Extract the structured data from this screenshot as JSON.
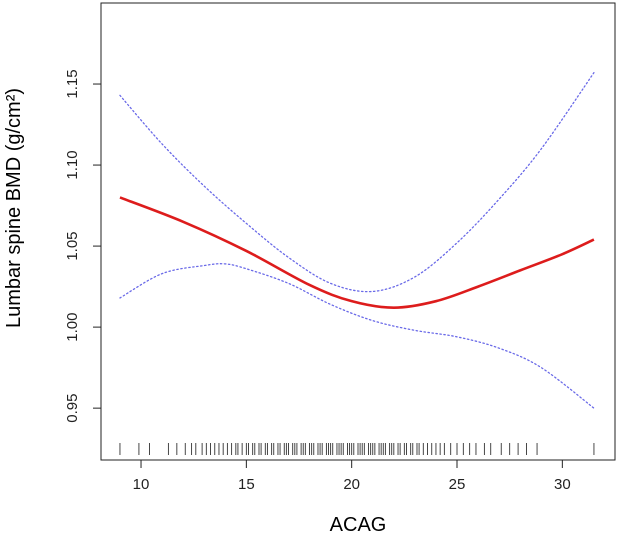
{
  "chart_data": {
    "type": "line",
    "title": "",
    "xlabel": "ACAG",
    "ylabel": "Lumbar spine BMD (g/cm²)",
    "xlim": [
      8.1,
      32.5
    ],
    "ylim": [
      0.918,
      1.2
    ],
    "x_ticks": [
      10,
      15,
      20,
      25,
      30
    ],
    "x_tick_labels": [
      "10",
      "15",
      "20",
      "25",
      "30"
    ],
    "y_ticks": [
      0.95,
      1.0,
      1.05,
      1.1,
      1.15
    ],
    "y_tick_labels": [
      "0.95",
      "1.00",
      "1.05",
      "1.10",
      "1.15"
    ],
    "series": [
      {
        "name": "fit",
        "style": "solid",
        "color": "#dd1c1c",
        "x": [
          9.0,
          12.0,
          15.0,
          18.0,
          20.0,
          22.0,
          24.0,
          26.0,
          28.0,
          30.0,
          31.5
        ],
        "values": [
          1.08,
          1.065,
          1.047,
          1.026,
          1.016,
          1.012,
          1.016,
          1.025,
          1.035,
          1.045,
          1.054
        ]
      },
      {
        "name": "upper 95% CI",
        "style": "dotted",
        "color": "#6a6ae8",
        "x": [
          9.0,
          11.0,
          13.0,
          15.0,
          17.0,
          19.0,
          21.0,
          23.0,
          25.0,
          27.0,
          29.0,
          31.5
        ],
        "values": [
          1.143,
          1.113,
          1.087,
          1.064,
          1.043,
          1.027,
          1.022,
          1.031,
          1.052,
          1.079,
          1.11,
          1.157
        ]
      },
      {
        "name": "lower 95% CI",
        "style": "dotted",
        "color": "#6a6ae8",
        "x": [
          9.0,
          11.0,
          13.0,
          14.0,
          15.0,
          17.0,
          19.0,
          21.0,
          23.0,
          25.0,
          27.0,
          29.0,
          31.5
        ],
        "values": [
          1.018,
          1.033,
          1.038,
          1.039,
          1.036,
          1.027,
          1.014,
          1.004,
          0.998,
          0.994,
          0.987,
          0.975,
          0.95
        ]
      }
    ],
    "rug": [
      9.0,
      9.9,
      10.4,
      11.3,
      11.7,
      12.1,
      12.4,
      12.6,
      12.9,
      13.1,
      13.3,
      13.5,
      13.7,
      13.9,
      14.1,
      14.3,
      14.5,
      14.6,
      14.8,
      15.0,
      15.1,
      15.3,
      15.4,
      15.6,
      15.7,
      15.9,
      16.0,
      16.2,
      16.3,
      16.5,
      16.6,
      16.8,
      16.9,
      17.0,
      17.2,
      17.3,
      17.4,
      17.6,
      17.7,
      17.8,
      18.0,
      18.1,
      18.2,
      18.4,
      18.5,
      18.6,
      18.8,
      18.9,
      19.0,
      19.1,
      19.3,
      19.4,
      19.5,
      19.6,
      19.8,
      19.9,
      20.0,
      20.1,
      20.3,
      20.4,
      20.5,
      20.6,
      20.8,
      20.9,
      21.0,
      21.1,
      21.3,
      21.4,
      21.5,
      21.6,
      21.8,
      21.9,
      22.0,
      22.2,
      22.3,
      22.5,
      22.6,
      22.8,
      22.9,
      23.1,
      23.2,
      23.4,
      23.6,
      23.8,
      24.0,
      24.2,
      24.4,
      24.7,
      25.0,
      25.3,
      25.6,
      25.9,
      26.3,
      26.6,
      27.1,
      27.5,
      27.9,
      28.3,
      28.8,
      31.5
    ]
  }
}
